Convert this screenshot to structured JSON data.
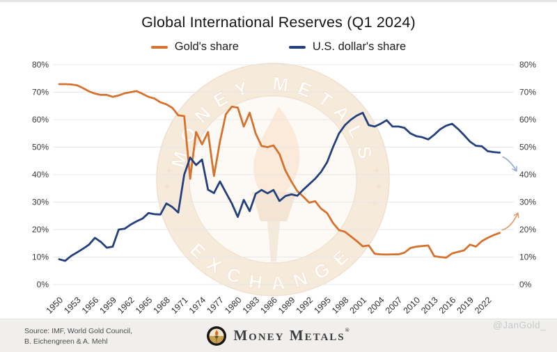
{
  "header": {
    "title": "Global International Reserves (Q1 2024)"
  },
  "legend": [
    {
      "label": "Gold's share",
      "color": "#d4722e"
    },
    {
      "label": "U.S. dollar's share",
      "color": "#24407c"
    }
  ],
  "chart_data": {
    "type": "line",
    "title": "Global International Reserves (Q1 2024)",
    "xlabel": "",
    "ylabel": "",
    "ylim": [
      0,
      80
    ],
    "grid": true,
    "legend_position": "top",
    "y_ticks": [
      "0%",
      "10%",
      "20%",
      "30%",
      "40%",
      "50%",
      "60%",
      "70%",
      "80%"
    ],
    "y_axis_sides": [
      "left",
      "right"
    ],
    "x_tick_years": [
      1950,
      1953,
      1956,
      1959,
      1962,
      1965,
      1968,
      1971,
      1974,
      1977,
      1980,
      1983,
      1986,
      1989,
      1992,
      1995,
      1998,
      2001,
      2004,
      2007,
      2010,
      2013,
      2016,
      2019,
      2022
    ],
    "years": [
      1950,
      1951,
      1952,
      1953,
      1954,
      1955,
      1956,
      1957,
      1958,
      1959,
      1960,
      1961,
      1962,
      1963,
      1964,
      1965,
      1966,
      1967,
      1968,
      1969,
      1970,
      1971,
      1972,
      1973,
      1974,
      1975,
      1976,
      1977,
      1978,
      1979,
      1980,
      1981,
      1982,
      1983,
      1984,
      1985,
      1986,
      1987,
      1988,
      1989,
      1990,
      1991,
      1992,
      1993,
      1994,
      1995,
      1996,
      1997,
      1998,
      1999,
      2000,
      2001,
      2002,
      2003,
      2004,
      2005,
      2006,
      2007,
      2008,
      2009,
      2010,
      2011,
      2012,
      2013,
      2014,
      2015,
      2016,
      2017,
      2018,
      2019,
      2020,
      2021,
      2022,
      2023,
      2024
    ],
    "series": [
      {
        "name": "Gold's share",
        "color": "#d4722e",
        "values": [
          72.9,
          72.9,
          72.8,
          72.5,
          71.5,
          70.3,
          69.5,
          69,
          69,
          68.3,
          68.8,
          69.6,
          70,
          70.4,
          69.4,
          68.3,
          67.7,
          66.3,
          65.6,
          64.3,
          61.6,
          61.3,
          38.5,
          55.5,
          51,
          55.5,
          39.5,
          52,
          62,
          64.7,
          64.4,
          57.5,
          62.5,
          55,
          50.4,
          50,
          50.6,
          47.5,
          41.5,
          37.5,
          34,
          32,
          29.8,
          30.3,
          27.6,
          26,
          22.4,
          19.8,
          19.2,
          17.5,
          15.8,
          13.9,
          14.2,
          11.2,
          11,
          10.9,
          11,
          11,
          11.6,
          13.3,
          13.8,
          14,
          14.2,
          10.3,
          10,
          9.8,
          11.3,
          11.9,
          12.4,
          14.5,
          13.8,
          15.8,
          17,
          18,
          18.8
        ]
      },
      {
        "name": "U.S. dollar's share",
        "color": "#24407c",
        "values": [
          9.2,
          8.6,
          10.4,
          11.7,
          13,
          14.5,
          17,
          15.5,
          13.4,
          13.8,
          20,
          20.3,
          21.8,
          23,
          24,
          26,
          25.6,
          25.5,
          29.5,
          28.2,
          26.2,
          40,
          46.2,
          43.5,
          45.5,
          34.5,
          33.3,
          37.5,
          33.5,
          29.5,
          24.6,
          30.8,
          26.7,
          33,
          34.4,
          33.2,
          34.4,
          30.4,
          32.2,
          32.8,
          32.3,
          34.5,
          36.5,
          38.5,
          41,
          44.5,
          50,
          55,
          58,
          60,
          61.5,
          62.5,
          58,
          57.5,
          58.5,
          59.8,
          57.5,
          57.5,
          57,
          55,
          54,
          53.6,
          52.8,
          54.5,
          56.5,
          57.8,
          58.5,
          56.6,
          54.4,
          52,
          50.5,
          50.3,
          48.5,
          48.2,
          48
        ]
      }
    ],
    "annotations": [
      {
        "name": "usd-trend-arrow",
        "direction": "down-right",
        "color": "#94a9ce"
      },
      {
        "name": "gold-trend-arrow",
        "direction": "up-right",
        "color": "#e29a64"
      }
    ]
  },
  "watermark": {
    "arc_top": "MONEY METALS",
    "arc_bottom": "EXCHANGE"
  },
  "footer": {
    "source_line1": "Source: IMF, World Gold Council,",
    "source_line2": "B. Eichengreen & A. Mehl",
    "brand": "Money Metals",
    "reg": "®",
    "handle": "@JanGold_"
  }
}
